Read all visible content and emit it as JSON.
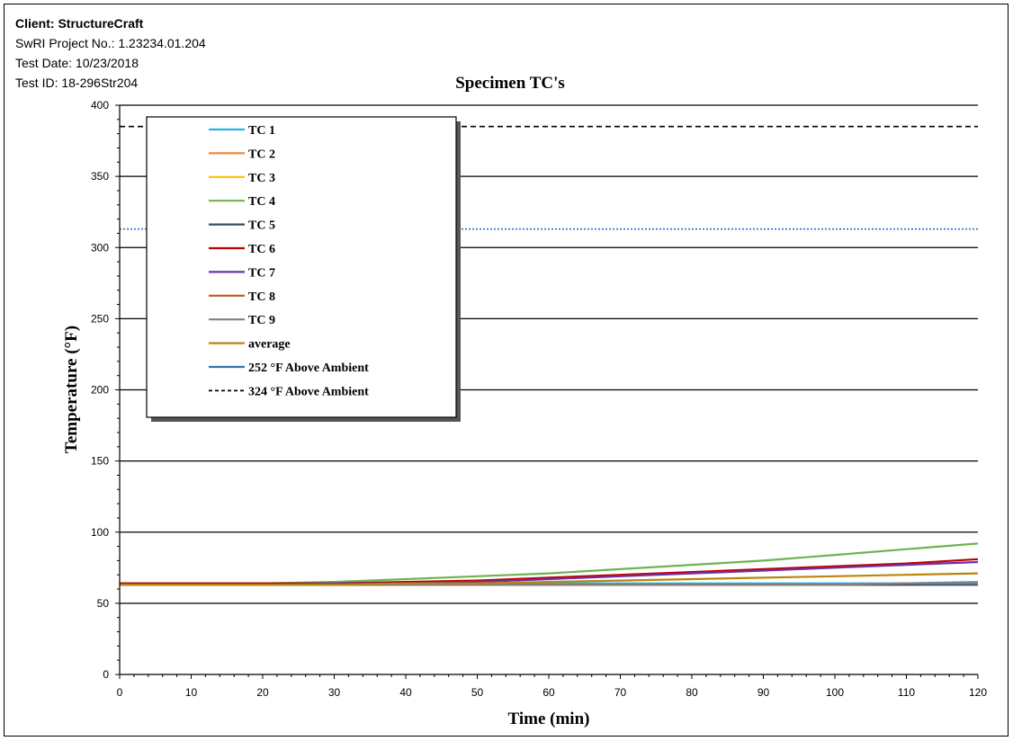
{
  "header": {
    "client": "Client: StructureCraft",
    "project": "SwRI Project No.: 1.23234.01.204",
    "test_date": "Test Date: 10/23/2018",
    "test_id": "Test ID: 18-296Str204"
  },
  "chart_data": {
    "type": "line",
    "title": "Specimen TC's",
    "xlabel": "Time  (min)",
    "ylabel": "Temperature  (°F)",
    "xlim": [
      0,
      120
    ],
    "ylim": [
      0,
      400
    ],
    "xticks": [
      0,
      10,
      20,
      30,
      40,
      50,
      60,
      70,
      80,
      90,
      100,
      110,
      120
    ],
    "yticks": [
      0,
      50,
      100,
      150,
      200,
      250,
      300,
      350,
      400
    ],
    "grid": "horizontal major gridlines",
    "legend_position": "top-left",
    "x": [
      0,
      10,
      20,
      30,
      40,
      50,
      60,
      70,
      80,
      90,
      100,
      110,
      120
    ],
    "series": [
      {
        "name": "TC 1",
        "color": "#29aee6",
        "values": [
          64,
          64,
          64,
          64,
          64,
          64,
          64,
          64,
          64,
          64,
          64,
          64,
          65
        ]
      },
      {
        "name": "TC 2",
        "color": "#ee8a3c",
        "values": [
          63,
          63,
          63,
          63,
          63,
          63,
          63,
          63,
          63,
          63,
          63,
          63,
          64
        ]
      },
      {
        "name": "TC 3",
        "color": "#ffc000",
        "values": [
          63,
          63,
          63,
          63,
          63,
          63,
          63,
          63,
          63,
          63,
          63,
          63,
          64
        ]
      },
      {
        "name": "TC 4",
        "color": "#70b34f",
        "values": [
          64,
          64,
          64,
          65,
          67,
          69,
          71,
          74,
          77,
          80,
          84,
          88,
          92
        ]
      },
      {
        "name": "TC 5",
        "color": "#3b4a6b",
        "values": [
          63,
          63,
          63,
          63,
          63,
          63,
          63,
          63,
          63,
          63,
          63,
          63,
          63
        ]
      },
      {
        "name": "TC 6",
        "color": "#c00000",
        "values": [
          64,
          64,
          64,
          64,
          65,
          66,
          68,
          70,
          72,
          74,
          76,
          78,
          81
        ]
      },
      {
        "name": "TC 7",
        "color": "#7030a0",
        "values": [
          63,
          63,
          63,
          64,
          64,
          65,
          67,
          69,
          71,
          73,
          75,
          77,
          79
        ]
      },
      {
        "name": "TC 8",
        "color": "#c0591d",
        "values": [
          63,
          63,
          63,
          63,
          63,
          63,
          63,
          63,
          63,
          63,
          63,
          64,
          64
        ]
      },
      {
        "name": "TC 9",
        "color": "#808080",
        "values": [
          63,
          63,
          63,
          63,
          63,
          63,
          63,
          63,
          63,
          63,
          63,
          64,
          64
        ]
      },
      {
        "name": "average",
        "color": "#b8860b",
        "values": [
          63,
          63,
          63,
          63,
          64,
          64,
          65,
          66,
          67,
          68,
          69,
          70,
          71
        ]
      },
      {
        "name": "252 °F Above Ambient",
        "color": "#2e75b6",
        "dash": "dotted",
        "values": [
          313,
          313,
          313,
          313,
          313,
          313,
          313,
          313,
          313,
          313,
          313,
          313,
          313
        ]
      },
      {
        "name": "324 °F Above Ambient",
        "color": "#000000",
        "dash": "dashed",
        "values": [
          385,
          385,
          385,
          385,
          385,
          385,
          385,
          385,
          385,
          385,
          385,
          385,
          385
        ]
      }
    ]
  }
}
